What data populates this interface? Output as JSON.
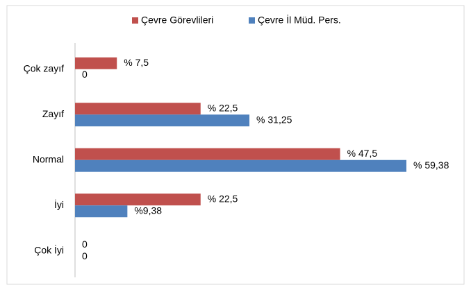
{
  "chart_data": {
    "type": "bar",
    "orientation": "horizontal",
    "categories": [
      "Çok zayıf",
      "Zayıf",
      "Normal",
      "İyi",
      "Çok İyi"
    ],
    "series": [
      {
        "name": "Çevre Görevlileri",
        "color": "#c0504d",
        "values": [
          7.5,
          22.5,
          47.5,
          22.5,
          0
        ],
        "value_labels": [
          "% 7,5",
          "% 22,5",
          "% 47,5",
          "% 22,5",
          "0"
        ]
      },
      {
        "name": "Çevre İl Müd. Pers.",
        "color": "#4f81bd",
        "values": [
          0,
          31.25,
          59.38,
          9.38,
          0
        ],
        "value_labels": [
          "0",
          "% 31,25",
          "% 59,38",
          "%9,38",
          "0"
        ]
      }
    ],
    "legend": "top"
  }
}
